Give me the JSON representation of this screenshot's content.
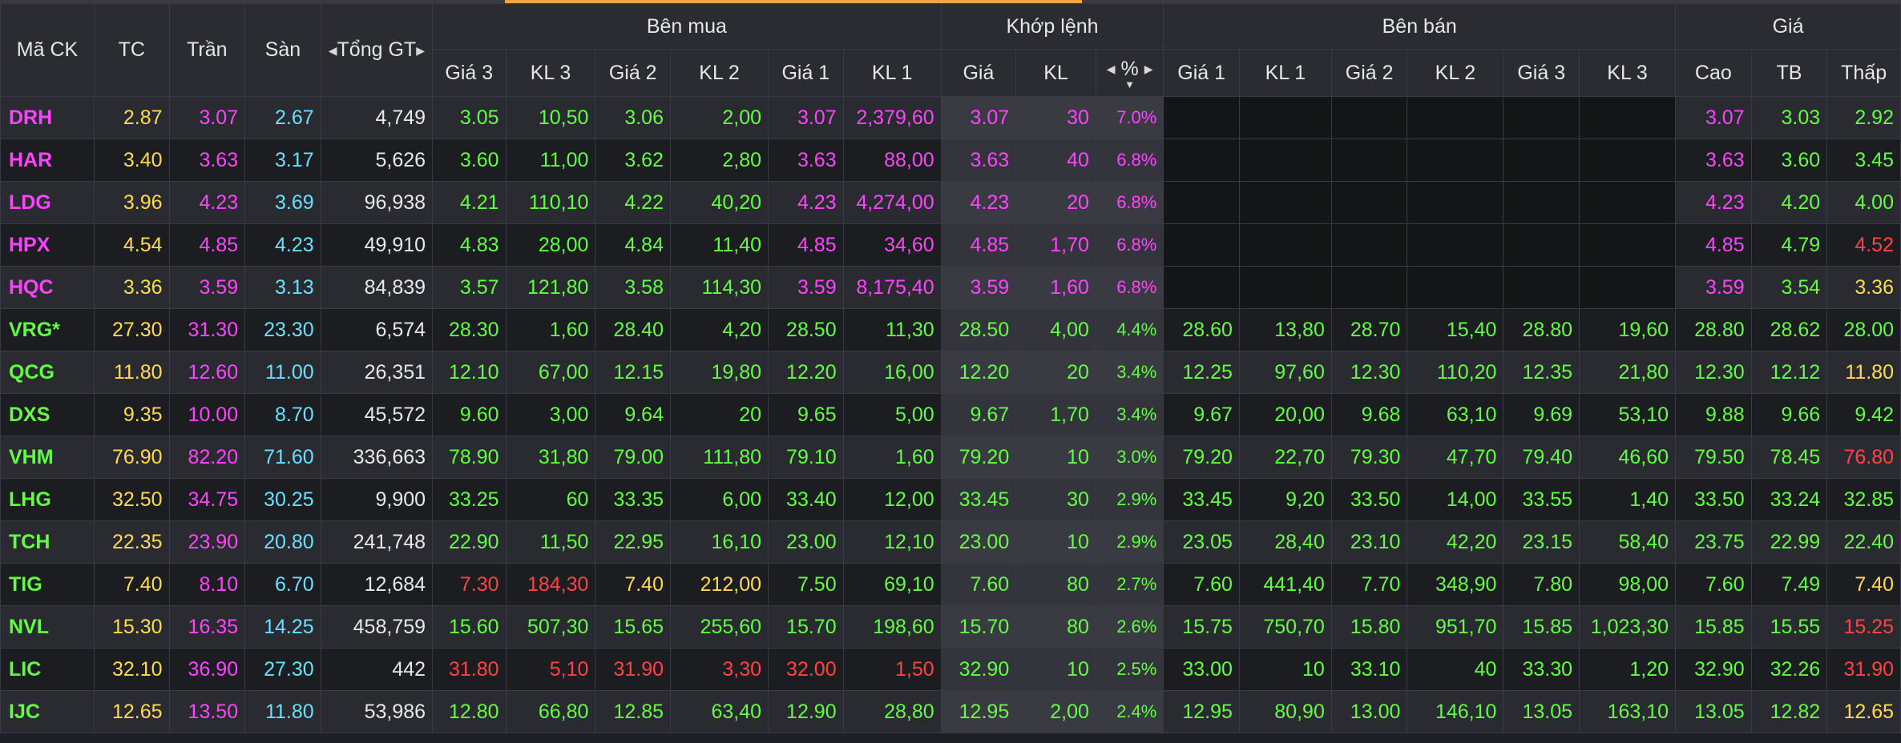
{
  "header": {
    "ma_ck": "Mã CK",
    "tc": "TC",
    "tran": "Trần",
    "san": "Sàn",
    "tong_gt": "Tổng GT",
    "ben_mua": "Bên mua",
    "khop_lenh": "Khớp lệnh",
    "ben_ban": "Bên bán",
    "gia": "Giá",
    "gia3": "Giá 3",
    "kl3": "KL 3",
    "gia2": "Giá 2",
    "kl2": "KL 2",
    "gia1": "Giá 1",
    "kl1": "KL 1",
    "khop_gia": "Giá",
    "khop_kl": "KL",
    "khop_pct": "%",
    "cao": "Cao",
    "tb": "TB",
    "thap": "Thấp"
  },
  "colors": {
    "ref": "#ffdb4d",
    "ceiling": "#ff44ff",
    "floor": "#66e0ff",
    "up": "#62ff42",
    "down": "#ff4444"
  },
  "rows": [
    {
      "sym": "DRH",
      "sc": "ceil",
      "tc": "2.87",
      "tran": "3.07",
      "san": "2.67",
      "tong": "4,749",
      "b3": [
        "3.05",
        "10,50",
        "up"
      ],
      "b2": [
        "3.06",
        "2,00",
        "up"
      ],
      "b1": [
        "3.07",
        "2,379,60",
        "ceil"
      ],
      "m": [
        "3.07",
        "30",
        "7.0%",
        "ceil"
      ],
      "s1": [
        "",
        "",
        ""
      ],
      "s2": [
        "",
        "",
        ""
      ],
      "s3": [
        "",
        "",
        ""
      ],
      "cao": [
        "3.07",
        "ceil"
      ],
      "tb": [
        "3.03",
        "up"
      ],
      "thap": [
        "2.92",
        "up"
      ]
    },
    {
      "sym": "HAR",
      "sc": "ceil",
      "tc": "3.40",
      "tran": "3.63",
      "san": "3.17",
      "tong": "5,626",
      "b3": [
        "3.60",
        "11,00",
        "up"
      ],
      "b2": [
        "3.62",
        "2,80",
        "up"
      ],
      "b1": [
        "3.63",
        "88,00",
        "ceil"
      ],
      "m": [
        "3.63",
        "40",
        "6.8%",
        "ceil"
      ],
      "s1": [
        "",
        "",
        ""
      ],
      "s2": [
        "",
        "",
        ""
      ],
      "s3": [
        "",
        "",
        ""
      ],
      "cao": [
        "3.63",
        "ceil"
      ],
      "tb": [
        "3.60",
        "up"
      ],
      "thap": [
        "3.45",
        "up"
      ]
    },
    {
      "sym": "LDG",
      "sc": "ceil",
      "tc": "3.96",
      "tran": "4.23",
      "san": "3.69",
      "tong": "96,938",
      "b3": [
        "4.21",
        "110,10",
        "up"
      ],
      "b2": [
        "4.22",
        "40,20",
        "up"
      ],
      "b1": [
        "4.23",
        "4,274,00",
        "ceil"
      ],
      "m": [
        "4.23",
        "20",
        "6.8%",
        "ceil"
      ],
      "s1": [
        "",
        "",
        ""
      ],
      "s2": [
        "",
        "",
        ""
      ],
      "s3": [
        "",
        "",
        ""
      ],
      "cao": [
        "4.23",
        "ceil"
      ],
      "tb": [
        "4.20",
        "up"
      ],
      "thap": [
        "4.00",
        "up"
      ]
    },
    {
      "sym": "HPX",
      "sc": "ceil",
      "tc": "4.54",
      "tran": "4.85",
      "san": "4.23",
      "tong": "49,910",
      "b3": [
        "4.83",
        "28,00",
        "up"
      ],
      "b2": [
        "4.84",
        "11,40",
        "up"
      ],
      "b1": [
        "4.85",
        "34,60",
        "ceil"
      ],
      "m": [
        "4.85",
        "1,70",
        "6.8%",
        "ceil"
      ],
      "s1": [
        "",
        "",
        ""
      ],
      "s2": [
        "",
        "",
        ""
      ],
      "s3": [
        "",
        "",
        ""
      ],
      "cao": [
        "4.85",
        "ceil"
      ],
      "tb": [
        "4.79",
        "up"
      ],
      "thap": [
        "4.52",
        "down"
      ]
    },
    {
      "sym": "HQC",
      "sc": "ceil",
      "tc": "3.36",
      "tran": "3.59",
      "san": "3.13",
      "tong": "84,839",
      "b3": [
        "3.57",
        "121,80",
        "up"
      ],
      "b2": [
        "3.58",
        "114,30",
        "up"
      ],
      "b1": [
        "3.59",
        "8,175,40",
        "ceil"
      ],
      "m": [
        "3.59",
        "1,60",
        "6.8%",
        "ceil"
      ],
      "s1": [
        "",
        "",
        ""
      ],
      "s2": [
        "",
        "",
        ""
      ],
      "s3": [
        "",
        "",
        ""
      ],
      "cao": [
        "3.59",
        "ceil"
      ],
      "tb": [
        "3.54",
        "up"
      ],
      "thap": [
        "3.36",
        "ref"
      ]
    },
    {
      "sym": "VRG*",
      "sc": "up",
      "tc": "27.30",
      "tran": "31.30",
      "san": "23.30",
      "tong": "6,574",
      "b3": [
        "28.30",
        "1,60",
        "up"
      ],
      "b2": [
        "28.40",
        "4,20",
        "up"
      ],
      "b1": [
        "28.50",
        "11,30",
        "up"
      ],
      "m": [
        "28.50",
        "4,00",
        "4.4%",
        "up"
      ],
      "s1": [
        "28.60",
        "13,80",
        "up"
      ],
      "s2": [
        "28.70",
        "15,40",
        "up"
      ],
      "s3": [
        "28.80",
        "19,60",
        "up"
      ],
      "cao": [
        "28.80",
        "up"
      ],
      "tb": [
        "28.62",
        "up"
      ],
      "thap": [
        "28.00",
        "up"
      ]
    },
    {
      "sym": "QCG",
      "sc": "up",
      "tc": "11.80",
      "tran": "12.60",
      "san": "11.00",
      "tong": "26,351",
      "b3": [
        "12.10",
        "67,00",
        "up"
      ],
      "b2": [
        "12.15",
        "19,80",
        "up"
      ],
      "b1": [
        "12.20",
        "16,00",
        "up"
      ],
      "m": [
        "12.20",
        "20",
        "3.4%",
        "up"
      ],
      "s1": [
        "12.25",
        "97,60",
        "up"
      ],
      "s2": [
        "12.30",
        "110,20",
        "up"
      ],
      "s3": [
        "12.35",
        "21,80",
        "up"
      ],
      "cao": [
        "12.30",
        "up"
      ],
      "tb": [
        "12.12",
        "up"
      ],
      "thap": [
        "11.80",
        "ref"
      ]
    },
    {
      "sym": "DXS",
      "sc": "up",
      "tc": "9.35",
      "tran": "10.00",
      "san": "8.70",
      "tong": "45,572",
      "b3": [
        "9.60",
        "3,00",
        "up"
      ],
      "b2": [
        "9.64",
        "20",
        "up"
      ],
      "b1": [
        "9.65",
        "5,00",
        "up"
      ],
      "m": [
        "9.67",
        "1,70",
        "3.4%",
        "up"
      ],
      "s1": [
        "9.67",
        "20,00",
        "up"
      ],
      "s2": [
        "9.68",
        "63,10",
        "up"
      ],
      "s3": [
        "9.69",
        "53,10",
        "up"
      ],
      "cao": [
        "9.88",
        "up"
      ],
      "tb": [
        "9.66",
        "up"
      ],
      "thap": [
        "9.42",
        "up"
      ]
    },
    {
      "sym": "VHM",
      "sc": "up",
      "tc": "76.90",
      "tran": "82.20",
      "san": "71.60",
      "tong": "336,663",
      "b3": [
        "78.90",
        "31,80",
        "up"
      ],
      "b2": [
        "79.00",
        "111,80",
        "up"
      ],
      "b1": [
        "79.10",
        "1,60",
        "up"
      ],
      "m": [
        "79.20",
        "10",
        "3.0%",
        "up"
      ],
      "s1": [
        "79.20",
        "22,70",
        "up"
      ],
      "s2": [
        "79.30",
        "47,70",
        "up"
      ],
      "s3": [
        "79.40",
        "46,60",
        "up"
      ],
      "cao": [
        "79.50",
        "up"
      ],
      "tb": [
        "78.45",
        "up"
      ],
      "thap": [
        "76.80",
        "down"
      ]
    },
    {
      "sym": "LHG",
      "sc": "up",
      "tc": "32.50",
      "tran": "34.75",
      "san": "30.25",
      "tong": "9,900",
      "b3": [
        "33.25",
        "60",
        "up"
      ],
      "b2": [
        "33.35",
        "6,00",
        "up"
      ],
      "b1": [
        "33.40",
        "12,00",
        "up"
      ],
      "m": [
        "33.45",
        "30",
        "2.9%",
        "up"
      ],
      "s1": [
        "33.45",
        "9,20",
        "up"
      ],
      "s2": [
        "33.50",
        "14,00",
        "up"
      ],
      "s3": [
        "33.55",
        "1,40",
        "up"
      ],
      "cao": [
        "33.50",
        "up"
      ],
      "tb": [
        "33.24",
        "up"
      ],
      "thap": [
        "32.85",
        "up"
      ]
    },
    {
      "sym": "TCH",
      "sc": "up",
      "tc": "22.35",
      "tran": "23.90",
      "san": "20.80",
      "tong": "241,748",
      "b3": [
        "22.90",
        "11,50",
        "up"
      ],
      "b2": [
        "22.95",
        "16,10",
        "up"
      ],
      "b1": [
        "23.00",
        "12,10",
        "up"
      ],
      "m": [
        "23.00",
        "10",
        "2.9%",
        "up"
      ],
      "s1": [
        "23.05",
        "28,40",
        "up"
      ],
      "s2": [
        "23.10",
        "42,20",
        "up"
      ],
      "s3": [
        "23.15",
        "58,40",
        "up"
      ],
      "cao": [
        "23.75",
        "up"
      ],
      "tb": [
        "22.99",
        "up"
      ],
      "thap": [
        "22.40",
        "up"
      ]
    },
    {
      "sym": "TIG",
      "sc": "up",
      "tc": "7.40",
      "tran": "8.10",
      "san": "6.70",
      "tong": "12,684",
      "b3": [
        "7.30",
        "184,30",
        "down"
      ],
      "b2": [
        "7.40",
        "212,00",
        "ref"
      ],
      "b1": [
        "7.50",
        "69,10",
        "up"
      ],
      "m": [
        "7.60",
        "80",
        "2.7%",
        "up"
      ],
      "s1": [
        "7.60",
        "441,40",
        "up"
      ],
      "s2": [
        "7.70",
        "348,90",
        "up"
      ],
      "s3": [
        "7.80",
        "98,00",
        "up"
      ],
      "cao": [
        "7.60",
        "up"
      ],
      "tb": [
        "7.49",
        "up"
      ],
      "thap": [
        "7.40",
        "ref"
      ]
    },
    {
      "sym": "NVL",
      "sc": "up",
      "tc": "15.30",
      "tran": "16.35",
      "san": "14.25",
      "tong": "458,759",
      "b3": [
        "15.60",
        "507,30",
        "up"
      ],
      "b2": [
        "15.65",
        "255,60",
        "up"
      ],
      "b1": [
        "15.70",
        "198,60",
        "up"
      ],
      "m": [
        "15.70",
        "80",
        "2.6%",
        "up"
      ],
      "s1": [
        "15.75",
        "750,70",
        "up"
      ],
      "s2": [
        "15.80",
        "951,70",
        "up"
      ],
      "s3": [
        "15.85",
        "1,023,30",
        "up"
      ],
      "cao": [
        "15.85",
        "up"
      ],
      "tb": [
        "15.55",
        "up"
      ],
      "thap": [
        "15.25",
        "down"
      ]
    },
    {
      "sym": "LIC",
      "sc": "up",
      "tc": "32.10",
      "tran": "36.90",
      "san": "27.30",
      "tong": "442",
      "b3": [
        "31.80",
        "5,10",
        "down"
      ],
      "b2": [
        "31.90",
        "3,30",
        "down"
      ],
      "b1": [
        "32.00",
        "1,50",
        "down"
      ],
      "m": [
        "32.90",
        "10",
        "2.5%",
        "up"
      ],
      "s1": [
        "33.00",
        "10",
        "up"
      ],
      "s2": [
        "33.10",
        "40",
        "up"
      ],
      "s3": [
        "33.30",
        "1,20",
        "up"
      ],
      "cao": [
        "32.90",
        "up"
      ],
      "tb": [
        "32.26",
        "up"
      ],
      "thap": [
        "31.90",
        "down"
      ]
    },
    {
      "sym": "IJC",
      "sc": "up",
      "tc": "12.65",
      "tran": "13.50",
      "san": "11.80",
      "tong": "53,986",
      "b3": [
        "12.80",
        "66,80",
        "up"
      ],
      "b2": [
        "12.85",
        "63,40",
        "up"
      ],
      "b1": [
        "12.90",
        "28,80",
        "up"
      ],
      "m": [
        "12.95",
        "2,00",
        "2.4%",
        "up"
      ],
      "s1": [
        "12.95",
        "80,90",
        "up"
      ],
      "s2": [
        "13.00",
        "146,10",
        "up"
      ],
      "s3": [
        "13.05",
        "163,10",
        "up"
      ],
      "cao": [
        "13.05",
        "up"
      ],
      "tb": [
        "12.82",
        "up"
      ],
      "thap": [
        "12.65",
        "ref"
      ]
    }
  ]
}
